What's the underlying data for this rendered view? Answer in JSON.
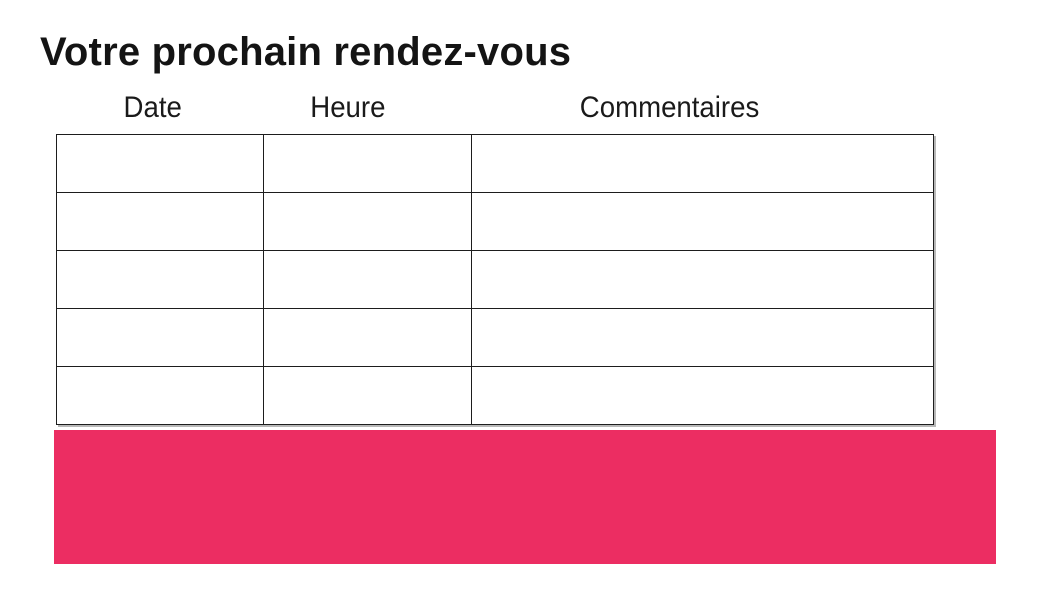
{
  "page": {
    "background": "#FFFFFF",
    "title": "Votre prochain rendez-vous"
  },
  "table": {
    "columns": [
      {
        "label": "Date"
      },
      {
        "label": "Heure"
      },
      {
        "label": "Commentaires"
      }
    ],
    "rows": [
      [
        "",
        "",
        ""
      ],
      [
        "",
        "",
        ""
      ],
      [
        "",
        "",
        ""
      ],
      [
        "",
        "",
        ""
      ],
      [
        "",
        "",
        ""
      ]
    ]
  },
  "banner": {
    "color": "#EC2D62"
  },
  "colors": {
    "text": "#1A1A1A",
    "table_border": "#1D1D1D"
  }
}
